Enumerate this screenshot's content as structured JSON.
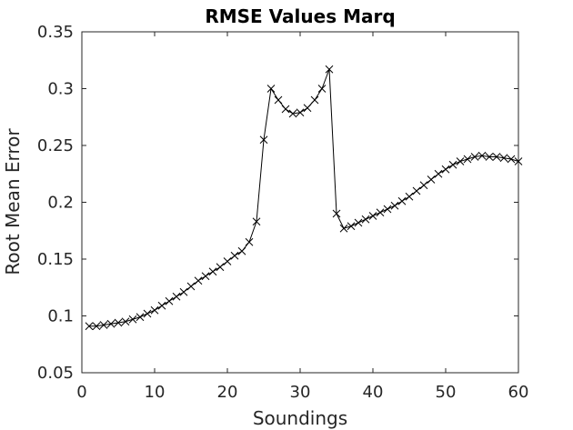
{
  "chart_data": {
    "type": "line",
    "title": "RMSE Values Marq",
    "xlabel": "Soundings",
    "ylabel": "Root Mean Error",
    "xlim": [
      0,
      60
    ],
    "ylim": [
      0.05,
      0.35
    ],
    "xticks": [
      0,
      10,
      20,
      30,
      40,
      50,
      60
    ],
    "xtick_labels": [
      "0",
      "10",
      "20",
      "30",
      "40",
      "50",
      "60"
    ],
    "yticks": [
      0.05,
      0.1,
      0.15,
      0.2,
      0.25,
      0.3,
      0.35
    ],
    "ytick_labels": [
      "0.05",
      "0.1",
      "0.15",
      "0.2",
      "0.25",
      "0.3",
      "0.35"
    ],
    "grid": false,
    "legend": "none",
    "marker": "x",
    "line_color": "#000000",
    "series": [
      {
        "x": [
          1,
          2,
          3,
          4,
          5,
          6,
          7,
          8,
          9,
          10,
          11,
          12,
          13,
          14,
          15,
          16,
          17,
          18,
          19,
          20,
          21,
          22,
          23,
          24,
          25,
          26,
          27,
          28,
          29,
          30,
          31,
          32,
          33,
          34,
          35,
          36,
          37,
          38,
          39,
          40,
          41,
          42,
          43,
          44,
          45,
          46,
          47,
          48,
          49,
          50,
          51,
          52,
          53,
          54,
          55,
          56,
          57,
          58,
          59,
          60
        ],
        "values": [
          0.091,
          0.091,
          0.092,
          0.093,
          0.094,
          0.095,
          0.097,
          0.099,
          0.102,
          0.105,
          0.109,
          0.113,
          0.117,
          0.121,
          0.126,
          0.131,
          0.135,
          0.139,
          0.143,
          0.148,
          0.153,
          0.157,
          0.165,
          0.183,
          0.255,
          0.3,
          0.29,
          0.282,
          0.278,
          0.279,
          0.283,
          0.29,
          0.3,
          0.317,
          0.19,
          0.177,
          0.179,
          0.182,
          0.185,
          0.188,
          0.191,
          0.194,
          0.197,
          0.201,
          0.205,
          0.21,
          0.215,
          0.22,
          0.225,
          0.229,
          0.233,
          0.236,
          0.238,
          0.24,
          0.241,
          0.24,
          0.24,
          0.239,
          0.238,
          0.236
        ]
      }
    ]
  }
}
